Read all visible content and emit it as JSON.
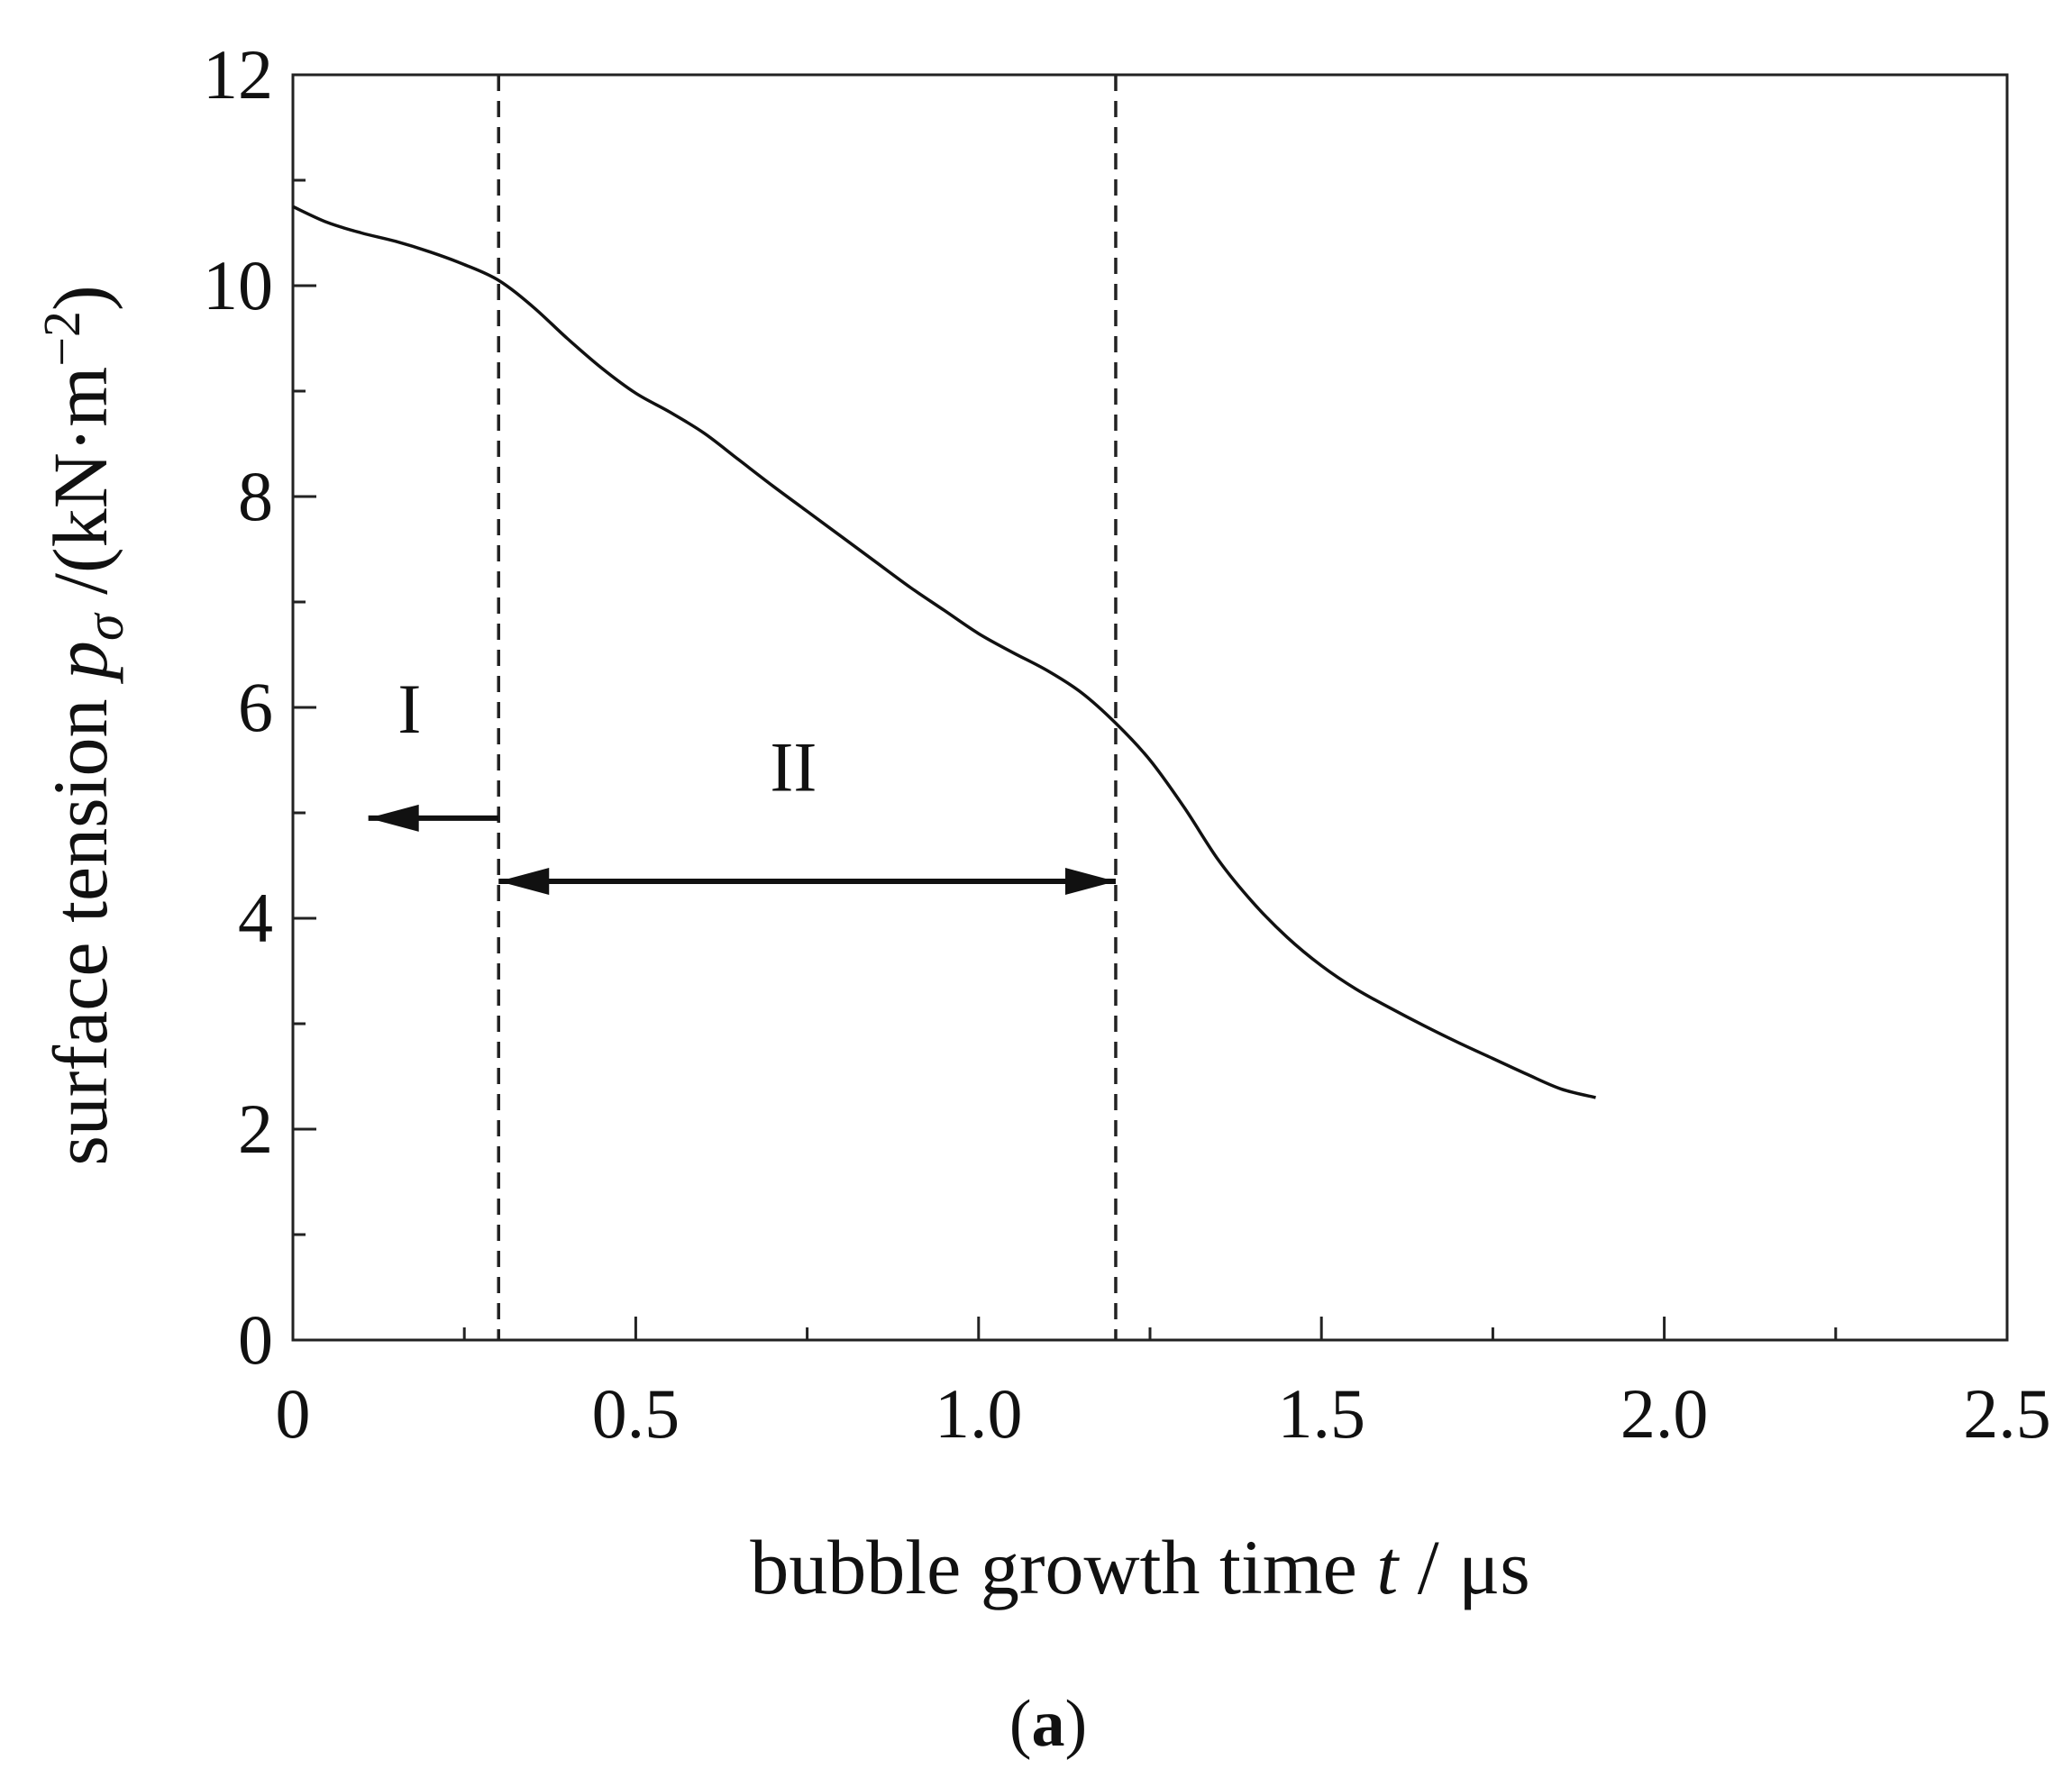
{
  "chart_data": {
    "type": "line",
    "title": "",
    "xlabel": {
      "prefix": "bubble growth time ",
      "var": "t",
      "unit": " / μs"
    },
    "ylabel": {
      "prefix": "surface tension ",
      "var": "p",
      "sub": "σ",
      "unit_pre": " /(kN·m",
      "unit_exp": "−2",
      "unit_post": ")"
    },
    "xlim": [
      0,
      2.5
    ],
    "ylim": [
      0,
      12
    ],
    "xticks": [
      0,
      0.5,
      1.0,
      1.5,
      2.0,
      2.5
    ],
    "xtick_labels": [
      "0",
      "0.5",
      "1.0",
      "1.5",
      "2.0",
      "2.5"
    ],
    "yticks": [
      0,
      2,
      4,
      6,
      8,
      10,
      12
    ],
    "ytick_labels": [
      "0",
      "2",
      "4",
      "6",
      "8",
      "10",
      "12"
    ],
    "x_minor_step": 0.25,
    "y_minor_step": 1,
    "grid": false,
    "series": [
      {
        "x": [
          0,
          0.05,
          0.1,
          0.15,
          0.2,
          0.25,
          0.3,
          0.35,
          0.4,
          0.45,
          0.5,
          0.55,
          0.6,
          0.65,
          0.7,
          0.75,
          0.8,
          0.85,
          0.9,
          0.95,
          1.0,
          1.05,
          1.1,
          1.15,
          1.2,
          1.25,
          1.3,
          1.35,
          1.4,
          1.45,
          1.5,
          1.55,
          1.6,
          1.65,
          1.7,
          1.75,
          1.8,
          1.85,
          1.9
        ],
        "y": [
          10.75,
          10.6,
          10.5,
          10.42,
          10.32,
          10.2,
          10.05,
          9.8,
          9.5,
          9.22,
          8.98,
          8.8,
          8.6,
          8.35,
          8.1,
          7.86,
          7.62,
          7.38,
          7.14,
          6.92,
          6.7,
          6.52,
          6.35,
          6.14,
          5.85,
          5.5,
          5.05,
          4.55,
          4.15,
          3.82,
          3.55,
          3.33,
          3.15,
          2.98,
          2.82,
          2.67,
          2.52,
          2.38,
          2.3
        ]
      }
    ],
    "boundaries": [
      0.3,
      1.2
    ],
    "regions": [
      {
        "label": "I",
        "x": 0.17,
        "y": 6.0,
        "arrow": {
          "from": 0.3,
          "to": 0.11,
          "y": 4.95,
          "heads": "left"
        }
      },
      {
        "label": "II",
        "x": 0.73,
        "y": 5.45,
        "arrow": {
          "from": 0.3,
          "to": 1.2,
          "y": 4.35,
          "heads": "both"
        }
      }
    ]
  },
  "caption": {
    "open": "(",
    "letter": "a",
    "close": ")"
  }
}
